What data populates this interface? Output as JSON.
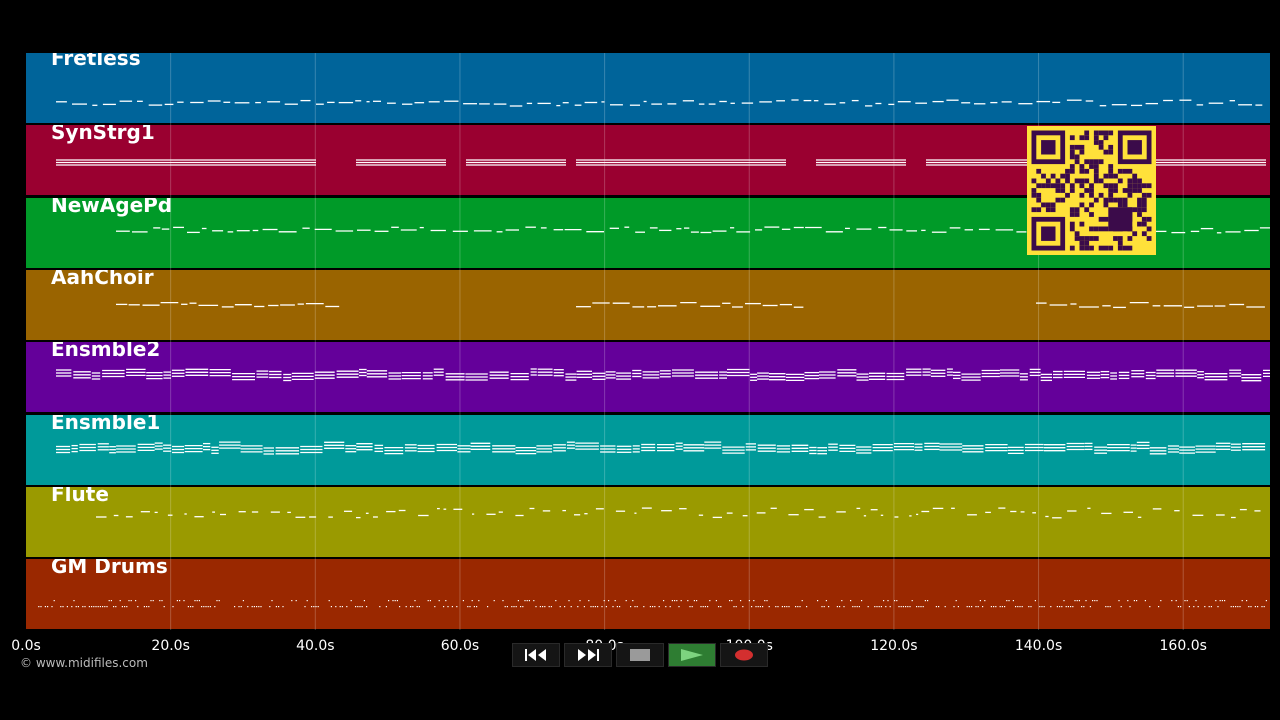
{
  "tracks": [
    {
      "name": "Fretless",
      "color": "#00649a",
      "style": "sparse-melody"
    },
    {
      "name": "SynStrg1",
      "color": "#9a0030",
      "style": "sustained-pads"
    },
    {
      "name": "NewAgePd",
      "color": "#009a28",
      "style": "melody"
    },
    {
      "name": "AahChoir",
      "color": "#9a6400",
      "style": "sections"
    },
    {
      "name": "Ensmble2",
      "color": "#64009a",
      "style": "dense-chords"
    },
    {
      "name": "Ensmble1",
      "color": "#009a9a",
      "style": "dense-chords"
    },
    {
      "name": "Flute",
      "color": "#9a9a00",
      "style": "staccato-melody"
    },
    {
      "name": "GM Drums",
      "color": "#9a2800",
      "style": "drums"
    }
  ],
  "timeline": {
    "ticks": [
      "0.0s",
      "20.0s",
      "40.0s",
      "60.0s",
      "80.0s",
      "100.0s",
      "120.0s",
      "140.0s",
      "160.0s"
    ],
    "tick_seconds": [
      0,
      20,
      40,
      60,
      80,
      100,
      120,
      140,
      160
    ],
    "end_seconds": 172
  },
  "copyright": "© www.midifiles.com",
  "transport": [
    {
      "name": "rewind-button",
      "icon": "rewind-icon"
    },
    {
      "name": "fast-forward-button",
      "icon": "fast-forward-icon"
    },
    {
      "name": "stop-button",
      "icon": "stop-icon"
    },
    {
      "name": "play-button",
      "icon": "play-icon",
      "active": true
    },
    {
      "name": "record-button",
      "icon": "record-icon"
    }
  ],
  "colors": {
    "note": "#ffffff",
    "play_active": "#2e7d32",
    "record": "#d32f2f",
    "qr_background": "#ffe13a",
    "qr_foreground": "#3b0b4a"
  },
  "qr_code": {
    "icon": "qr-code-icon"
  }
}
